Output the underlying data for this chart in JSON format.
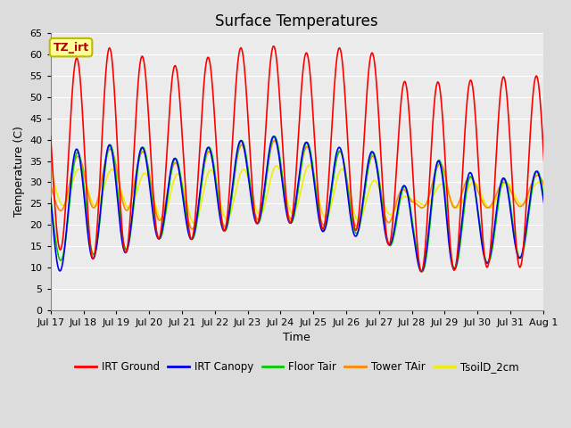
{
  "title": "Surface Temperatures",
  "ylabel": "Temperature (C)",
  "xlabel": "Time",
  "annotation": "TZ_irt",
  "ylim": [
    0,
    65
  ],
  "yticks": [
    0,
    5,
    10,
    15,
    20,
    25,
    30,
    35,
    40,
    45,
    50,
    55,
    60,
    65
  ],
  "series_colors": {
    "IRT Ground": "#FF0000",
    "IRT Canopy": "#0000EE",
    "Floor Tair": "#00CC00",
    "Tower TAir": "#FF8800",
    "TsoilD_2cm": "#EEEE00"
  },
  "line_width": 1.2,
  "bg_color": "#DCDCDC",
  "plot_bg_color": "#EBEBEB",
  "grid_color": "#FFFFFF",
  "title_fontsize": 12,
  "label_fontsize": 9,
  "tick_fontsize": 8,
  "tick_labels": [
    "Jul 17",
    "Jul 18",
    "Jul 19",
    "Jul 20",
    "Jul 21",
    "Jul 22",
    "Jul 23",
    "Jul 24",
    "Jul 25",
    "Jul 26",
    "Jul 27",
    "Jul 28",
    "Jul 29",
    "Jul 30",
    "Jul 31",
    "Aug 1"
  ],
  "ground_peaks": [
    56,
    60,
    62,
    59,
    57,
    60,
    62,
    62,
    60,
    62,
    60,
    52,
    54,
    54,
    55,
    55
  ],
  "ground_troughs": [
    15,
    12,
    12,
    17,
    16,
    18,
    20,
    21,
    19,
    19,
    18,
    9,
    9,
    10,
    10,
    10
  ],
  "canopy_peaks": [
    37,
    38,
    39,
    38,
    35,
    39,
    40,
    41,
    39,
    38,
    37,
    27,
    37,
    31,
    31,
    33
  ],
  "canopy_troughs": [
    8,
    12,
    12,
    17,
    16,
    18,
    20,
    21,
    19,
    17,
    18,
    9,
    9,
    11,
    11,
    15
  ],
  "floor_peaks": [
    33,
    38,
    39,
    38,
    35,
    39,
    40,
    41,
    39,
    37,
    37,
    27,
    37,
    30,
    31,
    33
  ],
  "floor_troughs": [
    11,
    13,
    13,
    17,
    16,
    18,
    20,
    21,
    19,
    18,
    18,
    9,
    9,
    11,
    11,
    15
  ],
  "tower_peaks": [
    32,
    37,
    38,
    37,
    34,
    38,
    39,
    40,
    38,
    37,
    36,
    26,
    36,
    30,
    30,
    32
  ],
  "tower_troughs": [
    23,
    24,
    24,
    22,
    19,
    19,
    21,
    22,
    20,
    20,
    19,
    24,
    24,
    24,
    24,
    25
  ],
  "soil_peaks": [
    34,
    33,
    33,
    32,
    32,
    33,
    33,
    34,
    34,
    33,
    30,
    26,
    30,
    30,
    30,
    30
  ],
  "soil_troughs": [
    25,
    24,
    25,
    22,
    20,
    21,
    22,
    23,
    22,
    21,
    21,
    25,
    24,
    24,
    24,
    26
  ],
  "ground_peak_hour": 13,
  "canopy_peak_hour": 13,
  "floor_peak_hour": 13.5,
  "tower_peak_hour": 13.5,
  "soil_peak_hour": 15
}
